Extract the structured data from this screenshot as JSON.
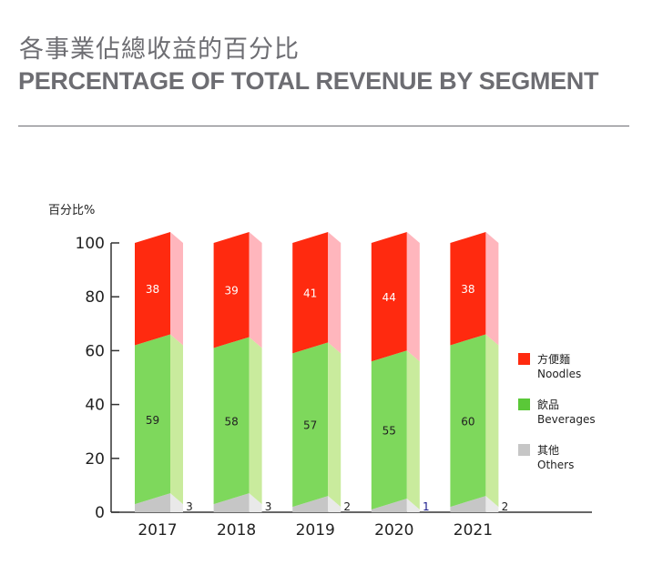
{
  "title_zh": "各事業佔總收益的百分比",
  "title_en": "PERCENTAGE OF TOTAL REVENUE BY SEGMENT",
  "chart_data": {
    "type": "bar",
    "stacked": true,
    "ylabel": "百分比%",
    "ylim": [
      0,
      100
    ],
    "yticks": [
      "0",
      "20",
      "40",
      "60",
      "80",
      "100"
    ],
    "categories": [
      "2017",
      "2018",
      "2019",
      "2020",
      "2021"
    ],
    "series": [
      {
        "name": "其他 Others",
        "name_zh": "其他",
        "name_en": "Others",
        "values": [
          3,
          3,
          2,
          1,
          2
        ],
        "color": "#c6c6c6",
        "side": "#e9e9e9"
      },
      {
        "name": "飲品 Beverages",
        "name_zh": "飲品",
        "name_en": "Beverages",
        "values": [
          59,
          58,
          57,
          55,
          60
        ],
        "color": "#7ed85c",
        "side": "#c9eb9d",
        "legend": "#5ac838"
      },
      {
        "name": "方便麵 Noodles",
        "name_zh": "方便麵",
        "name_en": "Noodles",
        "values": [
          38,
          39,
          41,
          44,
          38
        ],
        "color": "#ff2a0f",
        "side": "#ffb6bd"
      }
    ],
    "legend_position": "right",
    "grid": false
  }
}
